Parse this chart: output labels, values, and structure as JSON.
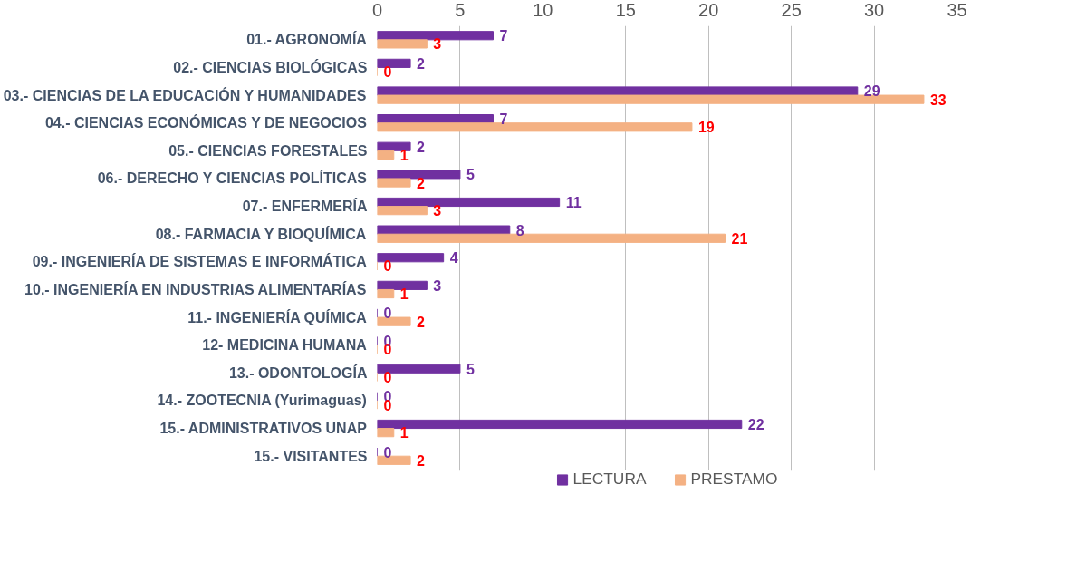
{
  "chart_data": {
    "type": "bar",
    "orientation": "horizontal",
    "categories": [
      "01.- AGRONOMÍA",
      "02.- CIENCIAS BIOLÓGICAS",
      "03.- CIENCIAS DE LA EDUCACIÓN Y HUMANIDADES",
      "04.- CIENCIAS ECONÓMICAS Y DE NEGOCIOS",
      "05.- CIENCIAS FORESTALES",
      "06.- DERECHO Y CIENCIAS POLÍTICAS",
      "07.- ENFERMERÍA",
      "08.- FARMACIA Y BIOQUÍMICA",
      "09.- INGENIERÍA DE SISTEMAS E INFORMÁTICA",
      "10.- INGENIERÍA EN INDUSTRIAS ALIMENTARÍAS",
      "11.- INGENIERÍA QUÍMICA",
      "12- MEDICINA HUMANA",
      "13.- ODONTOLOGÍA",
      "14.- ZOOTECNIA (Yurimaguas)",
      "15.- ADMINISTRATIVOS UNAP",
      "15.- VISITANTES"
    ],
    "series": [
      {
        "name": "LECTURA",
        "color": "#7030a0",
        "values": [
          7,
          2,
          29,
          7,
          2,
          5,
          11,
          8,
          4,
          3,
          0,
          0,
          5,
          0,
          22,
          0
        ]
      },
      {
        "name": "PRESTAMO",
        "color": "#f4b183",
        "values": [
          3,
          0,
          33,
          19,
          1,
          2,
          3,
          21,
          0,
          1,
          2,
          0,
          0,
          0,
          1,
          2
        ]
      }
    ],
    "xlim": [
      0,
      35
    ],
    "xticks": [
      0,
      5,
      10,
      15,
      20,
      25,
      30,
      35
    ],
    "grid": "x",
    "legend": "bottom",
    "data_labels": true
  }
}
